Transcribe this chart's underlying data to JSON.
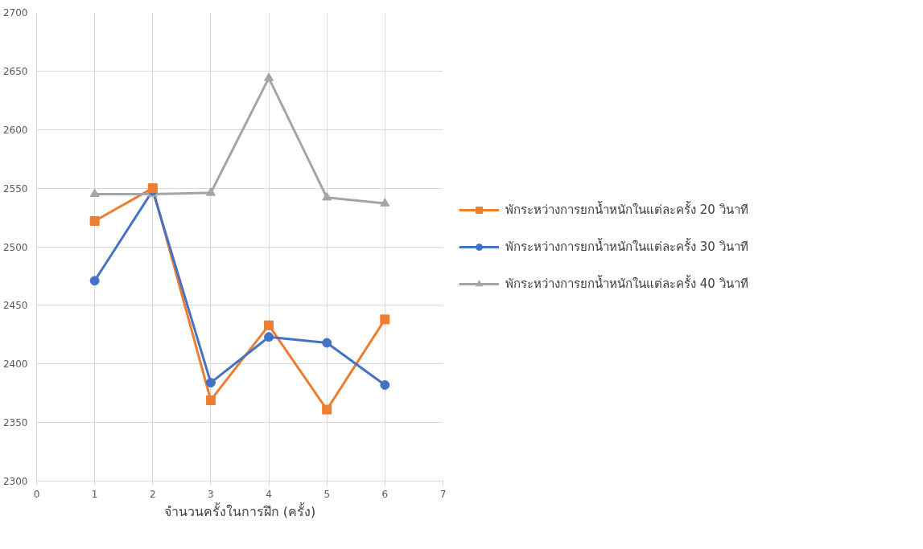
{
  "chart_data": {
    "type": "line",
    "xlabel": "จำนวนครั้งในการฝึก (ครั้ง)",
    "x": [
      1,
      2,
      3,
      4,
      5,
      6
    ],
    "series": [
      {
        "name": "พักระหว่างการยกน้ำหนักในแต่ละครั้ง 20 วินาที",
        "color": "#ed7d31",
        "marker": "square",
        "values": [
          2522,
          2550,
          2369,
          2433,
          2361,
          2438
        ]
      },
      {
        "name": "พักระหว่างการยกน้ำหนักในแต่ละครั้ง 30 วินาที",
        "color": "#4472c4",
        "marker": "circle",
        "values": [
          2471,
          2548,
          2384,
          2423,
          2418,
          2382
        ]
      },
      {
        "name": "พักระหว่างการยกน้ำหนักในแต่ละครั้ง 40 วินาที",
        "color": "#a5a5a5",
        "marker": "triangle",
        "values": [
          2545,
          2545,
          2546,
          2644,
          2542,
          2537
        ]
      }
    ],
    "xlim": [
      0,
      7
    ],
    "xticks": [
      0,
      1,
      2,
      3,
      4,
      5,
      6,
      7
    ],
    "ylim": [
      2300,
      2700
    ],
    "yticks": [
      2300,
      2350,
      2400,
      2450,
      2500,
      2550,
      2600,
      2650,
      2700
    ],
    "grid": true,
    "legend": "right",
    "line_style": "solid"
  }
}
